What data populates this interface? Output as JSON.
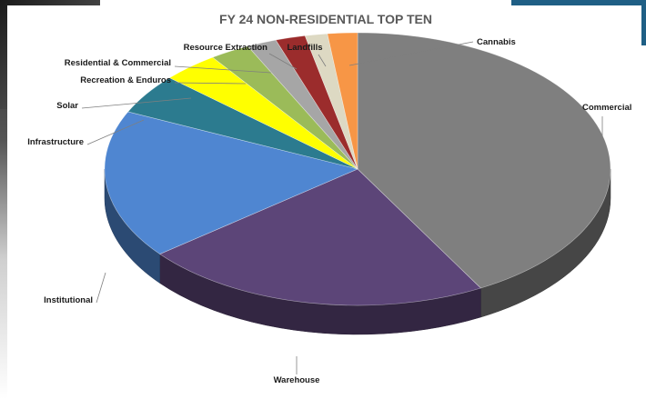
{
  "chart_data": {
    "type": "pie",
    "title": "FY 24 NON-RESIDENTIAL  TOP TEN",
    "categories": [
      "Commercial",
      "Warehouse",
      "Institutional",
      "Infrastructure",
      "Solar",
      "Recreation & Enduros",
      "Residential & Commercial",
      "Resource Extraction",
      "Landfills",
      "Cannabis"
    ],
    "values": [
      44.0,
      23.5,
      18.5,
      5.0,
      3.8,
      2.7,
      2.0,
      2.0,
      1.5,
      2.0
    ],
    "colors": [
      "#7f7f7f",
      "#5c4578",
      "#4f86d1",
      "#2c7b8f",
      "#ffff00",
      "#9bbb59",
      "#a6a6a6",
      "#9b2c2c",
      "#ddd9c3",
      "#f79646"
    ],
    "legend": "none (leader-line labels)",
    "style": "3d-exploded-pie"
  }
}
